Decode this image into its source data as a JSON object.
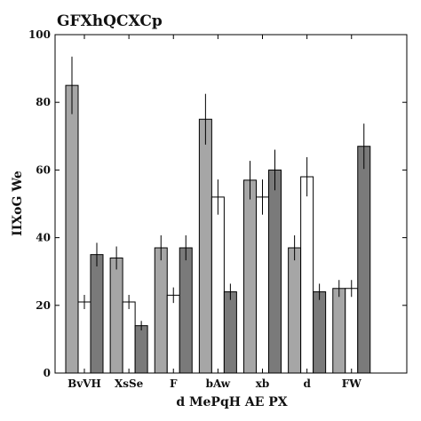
{
  "chart_data": {
    "type": "bar",
    "title": "GFXhQCXCp",
    "xlabel": "d MePqH AE PX",
    "ylabel": "IIXoG We",
    "ylim": [
      0,
      100
    ],
    "yticks": [
      0,
      20,
      40,
      60,
      80,
      100
    ],
    "categories": [
      "BvVH",
      "XsSe",
      "F",
      "bAw",
      "xb",
      "d",
      "FW"
    ],
    "grid": false,
    "series": [
      {
        "color": "#a6a6a6",
        "values": [
          85,
          34,
          37,
          75,
          57,
          37,
          25
        ],
        "errors": [
          8.5,
          3.4,
          3.7,
          7.5,
          5.7,
          3.7,
          2.5
        ]
      },
      {
        "color": "#ffffff",
        "values": [
          21,
          21,
          23,
          52,
          52,
          58,
          25
        ],
        "errors": [
          2.1,
          2.1,
          2.3,
          5.2,
          5.2,
          5.8,
          2.5
        ]
      },
      {
        "color": "#7a7a7a",
        "values": [
          35,
          14,
          37,
          24,
          60,
          24,
          67
        ],
        "errors": [
          3.5,
          1.4,
          3.7,
          2.4,
          6.0,
          2.4,
          6.7
        ]
      }
    ]
  }
}
